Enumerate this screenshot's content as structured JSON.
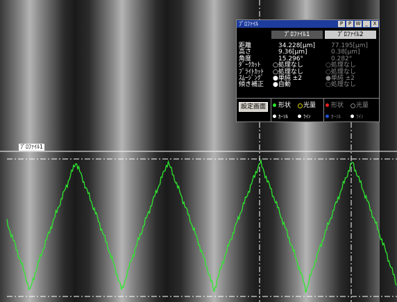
{
  "overlay": {
    "profile_tag": "ﾌﾟﾛﾌｧｲﾙ1"
  },
  "panel": {
    "title": "ﾌﾟﾛﾌｧｲﾙ",
    "buttons": [
      "P",
      "P",
      "W",
      "_",
      "X"
    ],
    "columns": [
      "ﾌﾟﾛﾌｧｲﾙ1",
      "ﾌﾟﾛﾌｧｲﾙ2"
    ],
    "row_labels": [
      "距離",
      "高さ",
      "角度",
      "ﾀﾞｰｸｶｯﾄ",
      "ﾌﾞﾗｲﾄｶｯﾄ",
      "ｽﾑｰｼﾞﾝｸﾞ",
      "傾き補正"
    ],
    "values": [
      [
        "34.228[μm]",
        "9.36[μm]",
        "15.296°",
        "○処理なし",
        "○処理なし",
        "●単純 ±2",
        "●自動"
      ],
      [
        "77.195[μm]",
        "0.38[μm]",
        "0.282°",
        "○処理なし",
        "○処理なし",
        "●単純 ±2",
        "○処理なし"
      ]
    ],
    "settings_button": "設定画面",
    "display": [
      [
        "形状",
        "光量",
        "ｶｰｿﾙ",
        "ﾗｲﾝ"
      ],
      [
        "形状",
        "光量",
        "ｶｰｿﾙ",
        "ﾗｲﾝ"
      ]
    ]
  }
}
